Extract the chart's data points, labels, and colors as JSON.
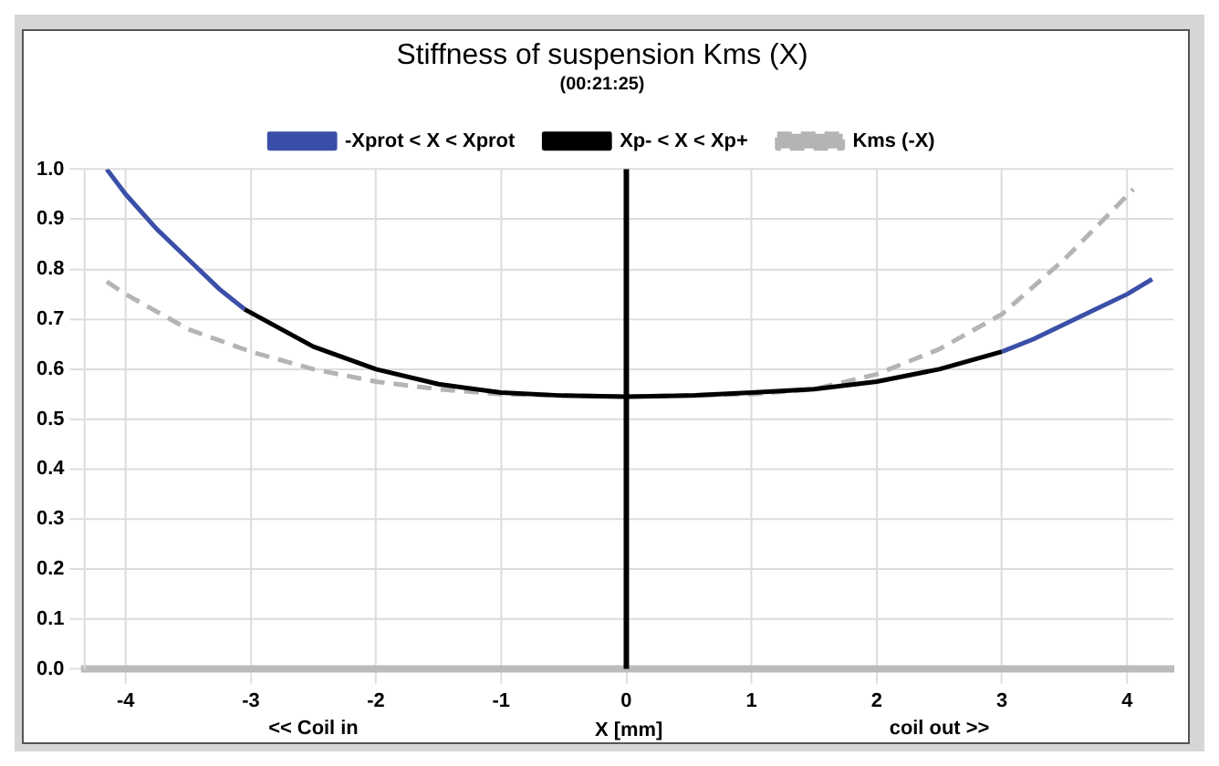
{
  "chart_data": {
    "type": "line",
    "title": "Stiffness of suspension Kms (X)",
    "subtitle": "(00:21:25)",
    "xlabel": "X [mm]",
    "annotations": [
      "<< Coil in",
      "coil out >>"
    ],
    "series": [
      {
        "name": "-Xprot < X < Xprot",
        "color": "#3a4fa8",
        "x": [
          -4.15,
          -4,
          -3.75,
          -3.5,
          -3.25,
          -3.05,
          0,
          3,
          3.25,
          3.5,
          3.75,
          4,
          4.2
        ],
        "values": [
          1.0,
          0.95,
          0.88,
          0.82,
          0.76,
          0.72,
          null,
          0.635,
          0.66,
          0.69,
          0.72,
          0.75,
          0.78
        ]
      },
      {
        "name": "Xp- < X < Xp+",
        "color": "#000000",
        "x": [
          -3.05,
          -2.5,
          -2,
          -1.5,
          -1,
          -0.5,
          0,
          0.5,
          1,
          1.5,
          2,
          2.5,
          3
        ],
        "values": [
          0.72,
          0.645,
          0.6,
          0.57,
          0.553,
          0.547,
          0.545,
          0.547,
          0.553,
          0.56,
          0.575,
          0.6,
          0.635
        ]
      },
      {
        "name": "Kms (-X)",
        "color": "#b4b4b4",
        "line_style": "dashed",
        "x": [
          -4.15,
          -4,
          -3.5,
          -3,
          -2.5,
          -2,
          -1.5,
          -1,
          0,
          1,
          1.5,
          2,
          2.5,
          3,
          3.5,
          4.05
        ],
        "values": [
          0.775,
          0.75,
          0.68,
          0.635,
          0.6,
          0.575,
          0.56,
          0.55,
          0.545,
          0.55,
          0.56,
          0.59,
          0.64,
          0.71,
          0.82,
          0.96
        ]
      }
    ],
    "ref_lines": [
      {
        "axis": "x",
        "value": 0,
        "color": "#000000"
      }
    ],
    "xlim": [
      -4.33,
      4.37
    ],
    "xticks": [
      -4,
      -3,
      -2,
      -1,
      0,
      1,
      2,
      3,
      4
    ],
    "ylim": [
      0,
      1
    ],
    "yticks": [
      {
        "value": 0,
        "label": "0.0"
      },
      0.1,
      0.2,
      0.3,
      0.4,
      0.5,
      0.6,
      0.7,
      0.8,
      0.9,
      {
        "value": 1,
        "label": "1.0"
      }
    ],
    "grid": true,
    "legend": "top",
    "marker": "none",
    "line_style": "solid"
  }
}
